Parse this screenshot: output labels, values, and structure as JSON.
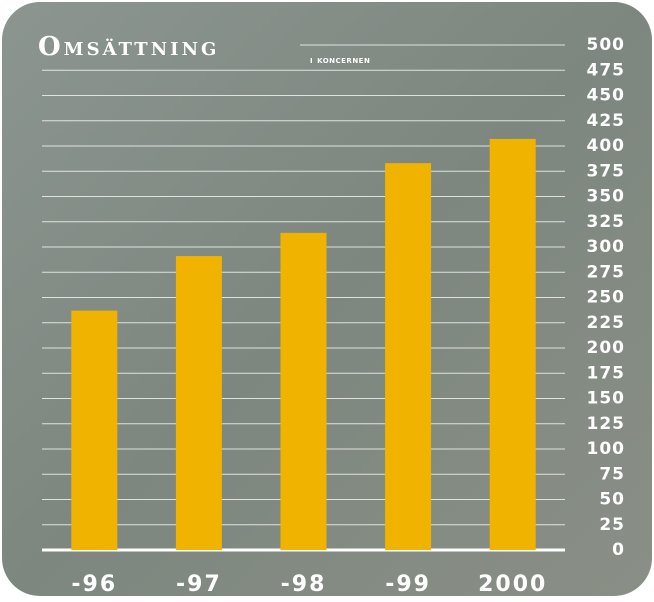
{
  "chart_data": {
    "type": "bar",
    "title": "Omsättning",
    "subtitle": "i koncernen",
    "categories": [
      "-96",
      "-97",
      "-98",
      "-99",
      "2000"
    ],
    "values": [
      237,
      291,
      314,
      383,
      407
    ],
    "color": "#f0b400",
    "ylim": [
      0,
      500
    ],
    "yticks": [
      0,
      25,
      50,
      75,
      100,
      125,
      150,
      175,
      200,
      225,
      250,
      275,
      300,
      325,
      350,
      375,
      400,
      425,
      450,
      475,
      500
    ],
    "grid": true
  }
}
